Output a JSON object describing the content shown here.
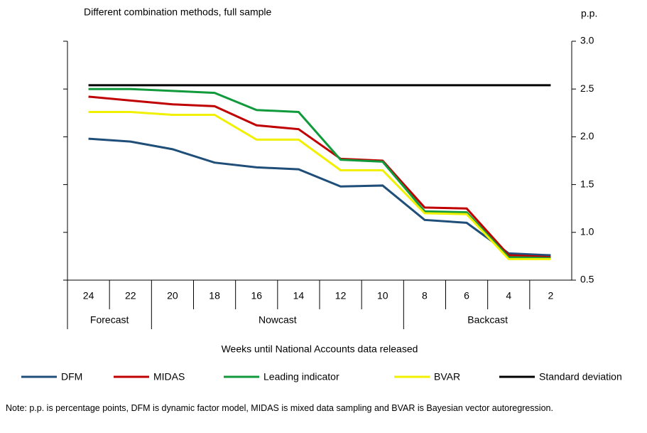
{
  "chart_data": {
    "type": "line",
    "title": "Different combination methods, full sample",
    "y_unit": "p.p.",
    "x_label": "Weeks until National Accounts data released",
    "groups": [
      {
        "label": "Forecast",
        "categories": [
          "24",
          "22"
        ]
      },
      {
        "label": "Nowcast",
        "categories": [
          "20",
          "18",
          "16",
          "14",
          "12",
          "10"
        ]
      },
      {
        "label": "Backcast",
        "categories": [
          "8",
          "6",
          "4",
          "2"
        ]
      }
    ],
    "ylim": [
      0.5,
      3
    ],
    "yticks": [
      {
        "value": 0.5,
        "label": "0.5"
      },
      {
        "value": 1,
        "label": "1.0"
      },
      {
        "value": 1.5,
        "label": "1.5"
      },
      {
        "value": 2,
        "label": "2.0"
      },
      {
        "value": 2.5,
        "label": "2.5"
      },
      {
        "value": 3,
        "label": "3.0"
      }
    ],
    "series": [
      {
        "name": "DFM",
        "color": "#1f4e79",
        "values": [
          1.98,
          1.95,
          1.87,
          1.73,
          1.68,
          1.66,
          1.48,
          1.49,
          1.13,
          1.1,
          0.78,
          0.76
        ]
      },
      {
        "name": "MIDAS",
        "color": "#c00000",
        "values": [
          2.42,
          2.38,
          2.34,
          2.32,
          2.12,
          2.08,
          1.77,
          1.75,
          1.26,
          1.25,
          0.76,
          0.74
        ]
      },
      {
        "name": "Leading indicator",
        "color": "#119a3c",
        "values": [
          2.5,
          2.5,
          2.48,
          2.46,
          2.28,
          2.26,
          1.76,
          1.74,
          1.22,
          1.21,
          0.74,
          0.73
        ]
      },
      {
        "name": "BVAR",
        "color": "#f0f000",
        "values": [
          2.26,
          2.26,
          2.23,
          2.23,
          1.97,
          1.97,
          1.65,
          1.65,
          1.2,
          1.19,
          0.72,
          0.72
        ]
      },
      {
        "name": "Standard deviation",
        "color": "#000000",
        "values": [
          2.54,
          2.54,
          2.54,
          2.54,
          2.54,
          2.54,
          2.54,
          2.54,
          2.54,
          2.54,
          2.54,
          2.54
        ]
      }
    ]
  },
  "note": "Note: p.p. is percentage points, DFM is dynamic factor model, MIDAS is mixed data sampling and BVAR is Bayesian vector autoregression."
}
